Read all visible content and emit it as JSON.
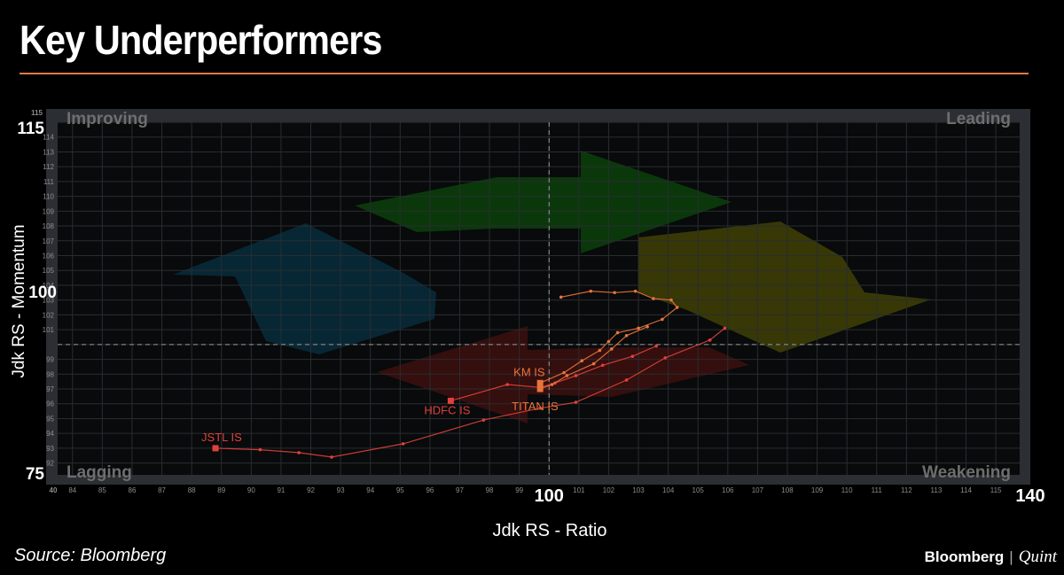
{
  "page": {
    "title": "Key Underperformers",
    "source": "Source: Bloomberg"
  },
  "brand": {
    "primary": "Bloomberg",
    "separator": "|",
    "secondary": "Quint"
  },
  "chart_data": {
    "type": "scatter",
    "title": "Key Underperformers",
    "xlabel": "Jdk RS - Ratio",
    "ylabel": "Jdk RS - Momentum",
    "xlim": [
      83.5,
      115.8
    ],
    "ylim": [
      91.2,
      115
    ],
    "center": {
      "x": 100,
      "y": 100
    },
    "x_ticks": [
      84,
      85,
      86,
      87,
      88,
      89,
      90,
      91,
      92,
      93,
      94,
      95,
      96,
      97,
      98,
      99,
      100,
      101,
      102,
      103,
      104,
      105,
      106,
      107,
      108,
      109,
      110,
      111,
      112,
      113,
      114,
      115
    ],
    "y_ticks": [
      92,
      93,
      94,
      95,
      96,
      97,
      98,
      99,
      100,
      101,
      102,
      103,
      104,
      105,
      106,
      107,
      108,
      109,
      110,
      111,
      112,
      113,
      114,
      115
    ],
    "axis_overlay_labels": {
      "x_min": "40",
      "x_center": "100",
      "x_max": "140",
      "y_top": "115",
      "y_center": "100",
      "y_bottom": "75",
      "y_top_small": "115"
    },
    "quadrants": [
      "Improving",
      "Leading",
      "Lagging",
      "Weakening"
    ],
    "grid": true,
    "colors": {
      "leading": "#0b3d0b",
      "weakening": "#3d3d05",
      "lagging": "#3b0e0e",
      "improving": "#082a3a",
      "trail_red": "#e0413a",
      "trail_orange": "#e8743b"
    },
    "series": [
      {
        "name": "JSTL IS",
        "color": "#e0413a",
        "points": [
          [
            105.9,
            101.1
          ],
          [
            105.4,
            100.3
          ],
          [
            103.9,
            99.1
          ],
          [
            102.6,
            97.6
          ],
          [
            100.9,
            96.1
          ],
          [
            99.7,
            95.7
          ],
          [
            97.8,
            94.9
          ],
          [
            95.1,
            93.3
          ],
          [
            92.7,
            92.4
          ],
          [
            91.6,
            92.7
          ],
          [
            90.3,
            92.9
          ],
          [
            88.8,
            93.0
          ]
        ]
      },
      {
        "name": "HDFC IS",
        "color": "#e0413a",
        "points": [
          [
            103.6,
            99.9
          ],
          [
            102.8,
            99.2
          ],
          [
            101.8,
            98.6
          ],
          [
            100.9,
            97.9
          ],
          [
            100.2,
            97.4
          ],
          [
            99.7,
            97.1
          ],
          [
            98.6,
            97.3
          ],
          [
            96.7,
            96.2
          ]
        ]
      },
      {
        "name": "TITAN IS",
        "color": "#e8743b",
        "points": [
          [
            103.3,
            101.2
          ],
          [
            102.6,
            100.6
          ],
          [
            102.1,
            99.7
          ],
          [
            101.5,
            98.7
          ],
          [
            100.6,
            97.9
          ],
          [
            100.1,
            97.3
          ],
          [
            99.7,
            97.0
          ]
        ]
      },
      {
        "name": "KM IS",
        "color": "#e8743b",
        "points": [
          [
            100.4,
            103.2
          ],
          [
            101.4,
            103.6
          ],
          [
            102.2,
            103.5
          ],
          [
            102.9,
            103.6
          ],
          [
            103.5,
            103.1
          ],
          [
            104.1,
            103.0
          ],
          [
            104.3,
            102.5
          ],
          [
            103.8,
            101.7
          ],
          [
            103.0,
            101.1
          ],
          [
            102.3,
            100.8
          ],
          [
            102.0,
            100.2
          ],
          [
            101.7,
            99.6
          ],
          [
            101.1,
            98.9
          ],
          [
            100.5,
            98.1
          ],
          [
            99.7,
            97.4
          ]
        ]
      }
    ]
  }
}
